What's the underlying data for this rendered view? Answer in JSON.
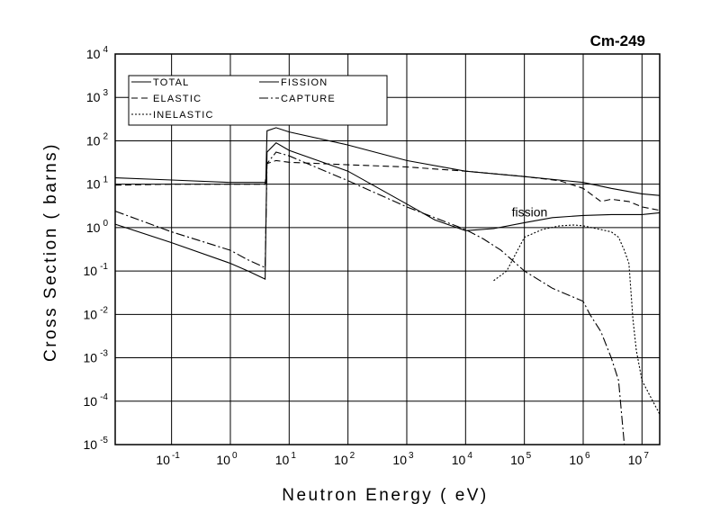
{
  "chart_data": {
    "type": "line",
    "title": "Cm-249",
    "xlabel": "Neutron Energy ( eV)",
    "ylabel": "Cross Section ( barns)",
    "x_scale": "log",
    "y_scale": "log",
    "xlim": [
      0.011,
      20000000
    ],
    "ylim": [
      1e-05,
      10000
    ],
    "grid": true,
    "legend_position": "top-left",
    "x_ticks": [
      {
        "base": "10",
        "exp": "-1",
        "value": 0.1
      },
      {
        "base": "10",
        "exp": "0",
        "value": 1
      },
      {
        "base": "10",
        "exp": "1",
        "value": 10
      },
      {
        "base": "10",
        "exp": "2",
        "value": 100
      },
      {
        "base": "10",
        "exp": "3",
        "value": 1000
      },
      {
        "base": "10",
        "exp": "4",
        "value": 10000
      },
      {
        "base": "10",
        "exp": "5",
        "value": 100000
      },
      {
        "base": "10",
        "exp": "6",
        "value": 1000000
      },
      {
        "base": "10",
        "exp": "7",
        "value": 10000000
      }
    ],
    "y_ticks": [
      {
        "base": "10",
        "exp": "4",
        "value": 10000
      },
      {
        "base": "10",
        "exp": "3",
        "value": 1000
      },
      {
        "base": "10",
        "exp": "2",
        "value": 100
      },
      {
        "base": "10",
        "exp": "1",
        "value": 10
      },
      {
        "base": "10",
        "exp": "0",
        "value": 1
      },
      {
        "base": "10",
        "exp": "-1",
        "value": 0.1
      },
      {
        "base": "10",
        "exp": "-2",
        "value": 0.01
      },
      {
        "base": "10",
        "exp": "-3",
        "value": 0.001
      },
      {
        "base": "10",
        "exp": "-4",
        "value": 0.0001
      },
      {
        "base": "10",
        "exp": "-5",
        "value": 1e-05
      }
    ],
    "annotations": [
      {
        "text": "fission",
        "x": 40000,
        "y": 2.3
      }
    ],
    "series": [
      {
        "name": "TOTAL",
        "dash": "",
        "points": [
          [
            0.011,
            14
          ],
          [
            0.1,
            12.5
          ],
          [
            1,
            11
          ],
          [
            3.9,
            11
          ],
          [
            4,
            10.9
          ],
          [
            4.2,
            170
          ],
          [
            6,
            200
          ],
          [
            10,
            160
          ],
          [
            100,
            80
          ],
          [
            1000,
            35
          ],
          [
            10000,
            20
          ],
          [
            100000,
            15
          ],
          [
            1000000,
            11
          ],
          [
            3000000,
            8
          ],
          [
            10000000,
            6
          ],
          [
            20000000,
            5.5
          ]
        ]
      },
      {
        "name": "ELASTIC",
        "dash": "7,4",
        "points": [
          [
            0.011,
            9.5
          ],
          [
            0.1,
            10
          ],
          [
            1,
            10
          ],
          [
            3.9,
            10
          ],
          [
            4.2,
            30
          ],
          [
            6,
            35
          ],
          [
            10,
            32
          ],
          [
            100,
            28
          ],
          [
            1000,
            25
          ],
          [
            10000,
            20
          ],
          [
            100000,
            15
          ],
          [
            400000,
            12
          ],
          [
            1000000,
            8
          ],
          [
            2000000,
            4
          ],
          [
            3000000,
            4.5
          ],
          [
            6000000,
            4
          ],
          [
            10000000,
            3
          ],
          [
            20000000,
            2.5
          ]
        ]
      },
      {
        "name": "INELASTIC",
        "dash": "2,2",
        "points": [
          [
            30000,
            0.06
          ],
          [
            40000,
            0.08
          ],
          [
            50000,
            0.1
          ],
          [
            100000,
            0.6
          ],
          [
            200000,
            0.9
          ],
          [
            400000,
            1.1
          ],
          [
            700000,
            1.15
          ],
          [
            1000000,
            1.1
          ],
          [
            2000000,
            0.9
          ],
          [
            3000000,
            0.8
          ],
          [
            4000000,
            0.6
          ],
          [
            5000000,
            0.3
          ],
          [
            6000000,
            0.15
          ],
          [
            7000000,
            0.008
          ],
          [
            8000000,
            0.0015
          ],
          [
            10000000,
            0.0003
          ],
          [
            20000000,
            5e-05
          ]
        ]
      },
      {
        "name": "FISSION",
        "dash": "",
        "points": [
          [
            0.011,
            1.2
          ],
          [
            0.1,
            0.45
          ],
          [
            1,
            0.15
          ],
          [
            2,
            0.1
          ],
          [
            3.9,
            0.065
          ],
          [
            4.2,
            55
          ],
          [
            6,
            90
          ],
          [
            10,
            60
          ],
          [
            100,
            20
          ],
          [
            1000,
            3.5
          ],
          [
            3000,
            1.5
          ],
          [
            10000,
            0.85
          ],
          [
            30000,
            0.95
          ],
          [
            100000,
            1.3
          ],
          [
            300000,
            1.7
          ],
          [
            1000000,
            1.9
          ],
          [
            3000000,
            2.0
          ],
          [
            10000000,
            2.0
          ],
          [
            20000000,
            2.2
          ]
        ]
      },
      {
        "name": "CAPTURE",
        "dash": "10,3,2,3",
        "points": [
          [
            0.011,
            2.4
          ],
          [
            0.1,
            0.8
          ],
          [
            1,
            0.3
          ],
          [
            2,
            0.18
          ],
          [
            3.9,
            0.12
          ],
          [
            4.2,
            30
          ],
          [
            6,
            55
          ],
          [
            10,
            45
          ],
          [
            100,
            12
          ],
          [
            1000,
            3
          ],
          [
            10000,
            0.9
          ],
          [
            20000,
            0.55
          ],
          [
            40000,
            0.3
          ],
          [
            100000,
            0.1
          ],
          [
            300000,
            0.04
          ],
          [
            1000000,
            0.02
          ],
          [
            1300000,
            0.01
          ],
          [
            2000000,
            0.004
          ],
          [
            3000000,
            0.001
          ],
          [
            4000000,
            0.0003
          ],
          [
            5000000,
            1e-05
          ]
        ]
      }
    ]
  }
}
